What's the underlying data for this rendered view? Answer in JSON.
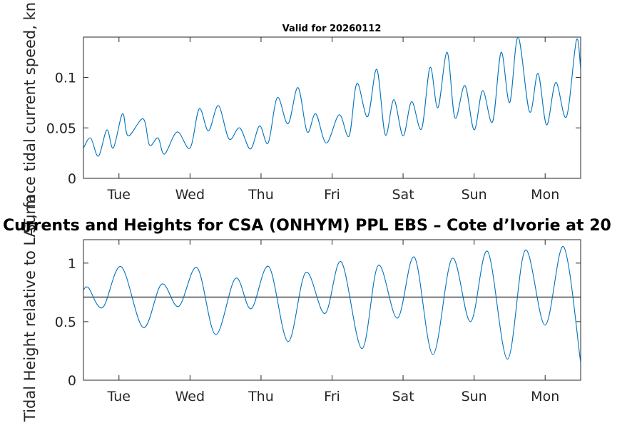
{
  "chart_data": [
    {
      "type": "line",
      "title": "Valid for 20260112",
      "ylabel": "Surface tidal current speed, kn",
      "xlabel": "",
      "xlim": [
        0,
        7
      ],
      "ylim": [
        0,
        0.14
      ],
      "x_ticks": [
        0.5,
        1.5,
        2.5,
        3.5,
        4.5,
        5.5,
        6.5
      ],
      "x_tick_labels": [
        "Tue",
        "Wed",
        "Thu",
        "Fri",
        "Sat",
        "Sun",
        "Mon"
      ],
      "y_ticks": [
        0,
        0.05,
        0.1
      ],
      "y_tick_labels": [
        "0",
        "0.05",
        "0.1"
      ],
      "grid": false,
      "series": [
        {
          "name": "current speed",
          "color": "#0072BD",
          "x": [
            0,
            0.1,
            0.21,
            0.33,
            0.42,
            0.55,
            0.63,
            0.84,
            0.93,
            1.05,
            1.14,
            1.32,
            1.5,
            1.63,
            1.76,
            1.9,
            2.05,
            2.2,
            2.35,
            2.48,
            2.6,
            2.73,
            2.88,
            3.02,
            3.15,
            3.27,
            3.42,
            3.6,
            3.74,
            3.85,
            4.0,
            4.13,
            4.25,
            4.37,
            4.5,
            4.62,
            4.76,
            4.88,
            4.99,
            5.12,
            5.23,
            5.37,
            5.5,
            5.62,
            5.76,
            5.88,
            6.0,
            6.12,
            6.28,
            6.4,
            6.52,
            6.65,
            6.8,
            6.94,
            7.0
          ],
          "y": [
            0.03,
            0.04,
            0.022,
            0.048,
            0.03,
            0.064,
            0.042,
            0.059,
            0.033,
            0.04,
            0.024,
            0.046,
            0.03,
            0.069,
            0.047,
            0.072,
            0.039,
            0.05,
            0.029,
            0.052,
            0.035,
            0.08,
            0.054,
            0.09,
            0.046,
            0.064,
            0.035,
            0.063,
            0.042,
            0.094,
            0.061,
            0.108,
            0.043,
            0.078,
            0.042,
            0.076,
            0.049,
            0.11,
            0.07,
            0.125,
            0.06,
            0.092,
            0.048,
            0.087,
            0.056,
            0.125,
            0.075,
            0.14,
            0.066,
            0.104,
            0.053,
            0.095,
            0.061,
            0.137,
            0.108
          ]
        }
      ]
    },
    {
      "type": "line",
      "title": "Currents and Heights for CSA (ONHYM) PPL EBS  – Cote d’Ivorie at 20",
      "ylabel": "Tidal Height relative to LAT, m",
      "xlabel": "",
      "xlim": [
        0,
        7
      ],
      "ylim": [
        0,
        1.2
      ],
      "x_ticks": [
        0.5,
        1.5,
        2.5,
        3.5,
        4.5,
        5.5,
        6.5
      ],
      "x_tick_labels": [
        "Tue",
        "Wed",
        "Thu",
        "Fri",
        "Sat",
        "Sun",
        "Mon"
      ],
      "y_ticks": [
        0,
        0.5,
        1
      ],
      "y_tick_labels": [
        "0",
        "0.5",
        "1"
      ],
      "grid": false,
      "reference_line": 0.71,
      "series": [
        {
          "name": "tidal height",
          "color": "#0072BD",
          "x": [
            0,
            0.07,
            0.27,
            0.53,
            0.84,
            1.1,
            1.34,
            1.6,
            1.86,
            2.14,
            2.36,
            2.61,
            2.88,
            3.13,
            3.4,
            3.63,
            3.92,
            4.15,
            4.42,
            4.66,
            4.92,
            5.19,
            5.45,
            5.69,
            5.97,
            6.22,
            6.5,
            6.76,
            7.0
          ],
          "y": [
            0.77,
            0.79,
            0.62,
            0.97,
            0.45,
            0.82,
            0.63,
            0.96,
            0.39,
            0.87,
            0.61,
            0.97,
            0.33,
            0.92,
            0.57,
            1.01,
            0.27,
            0.98,
            0.53,
            1.05,
            0.22,
            1.04,
            0.5,
            1.1,
            0.18,
            1.11,
            0.47,
            1.14,
            0.15
          ]
        }
      ]
    }
  ]
}
